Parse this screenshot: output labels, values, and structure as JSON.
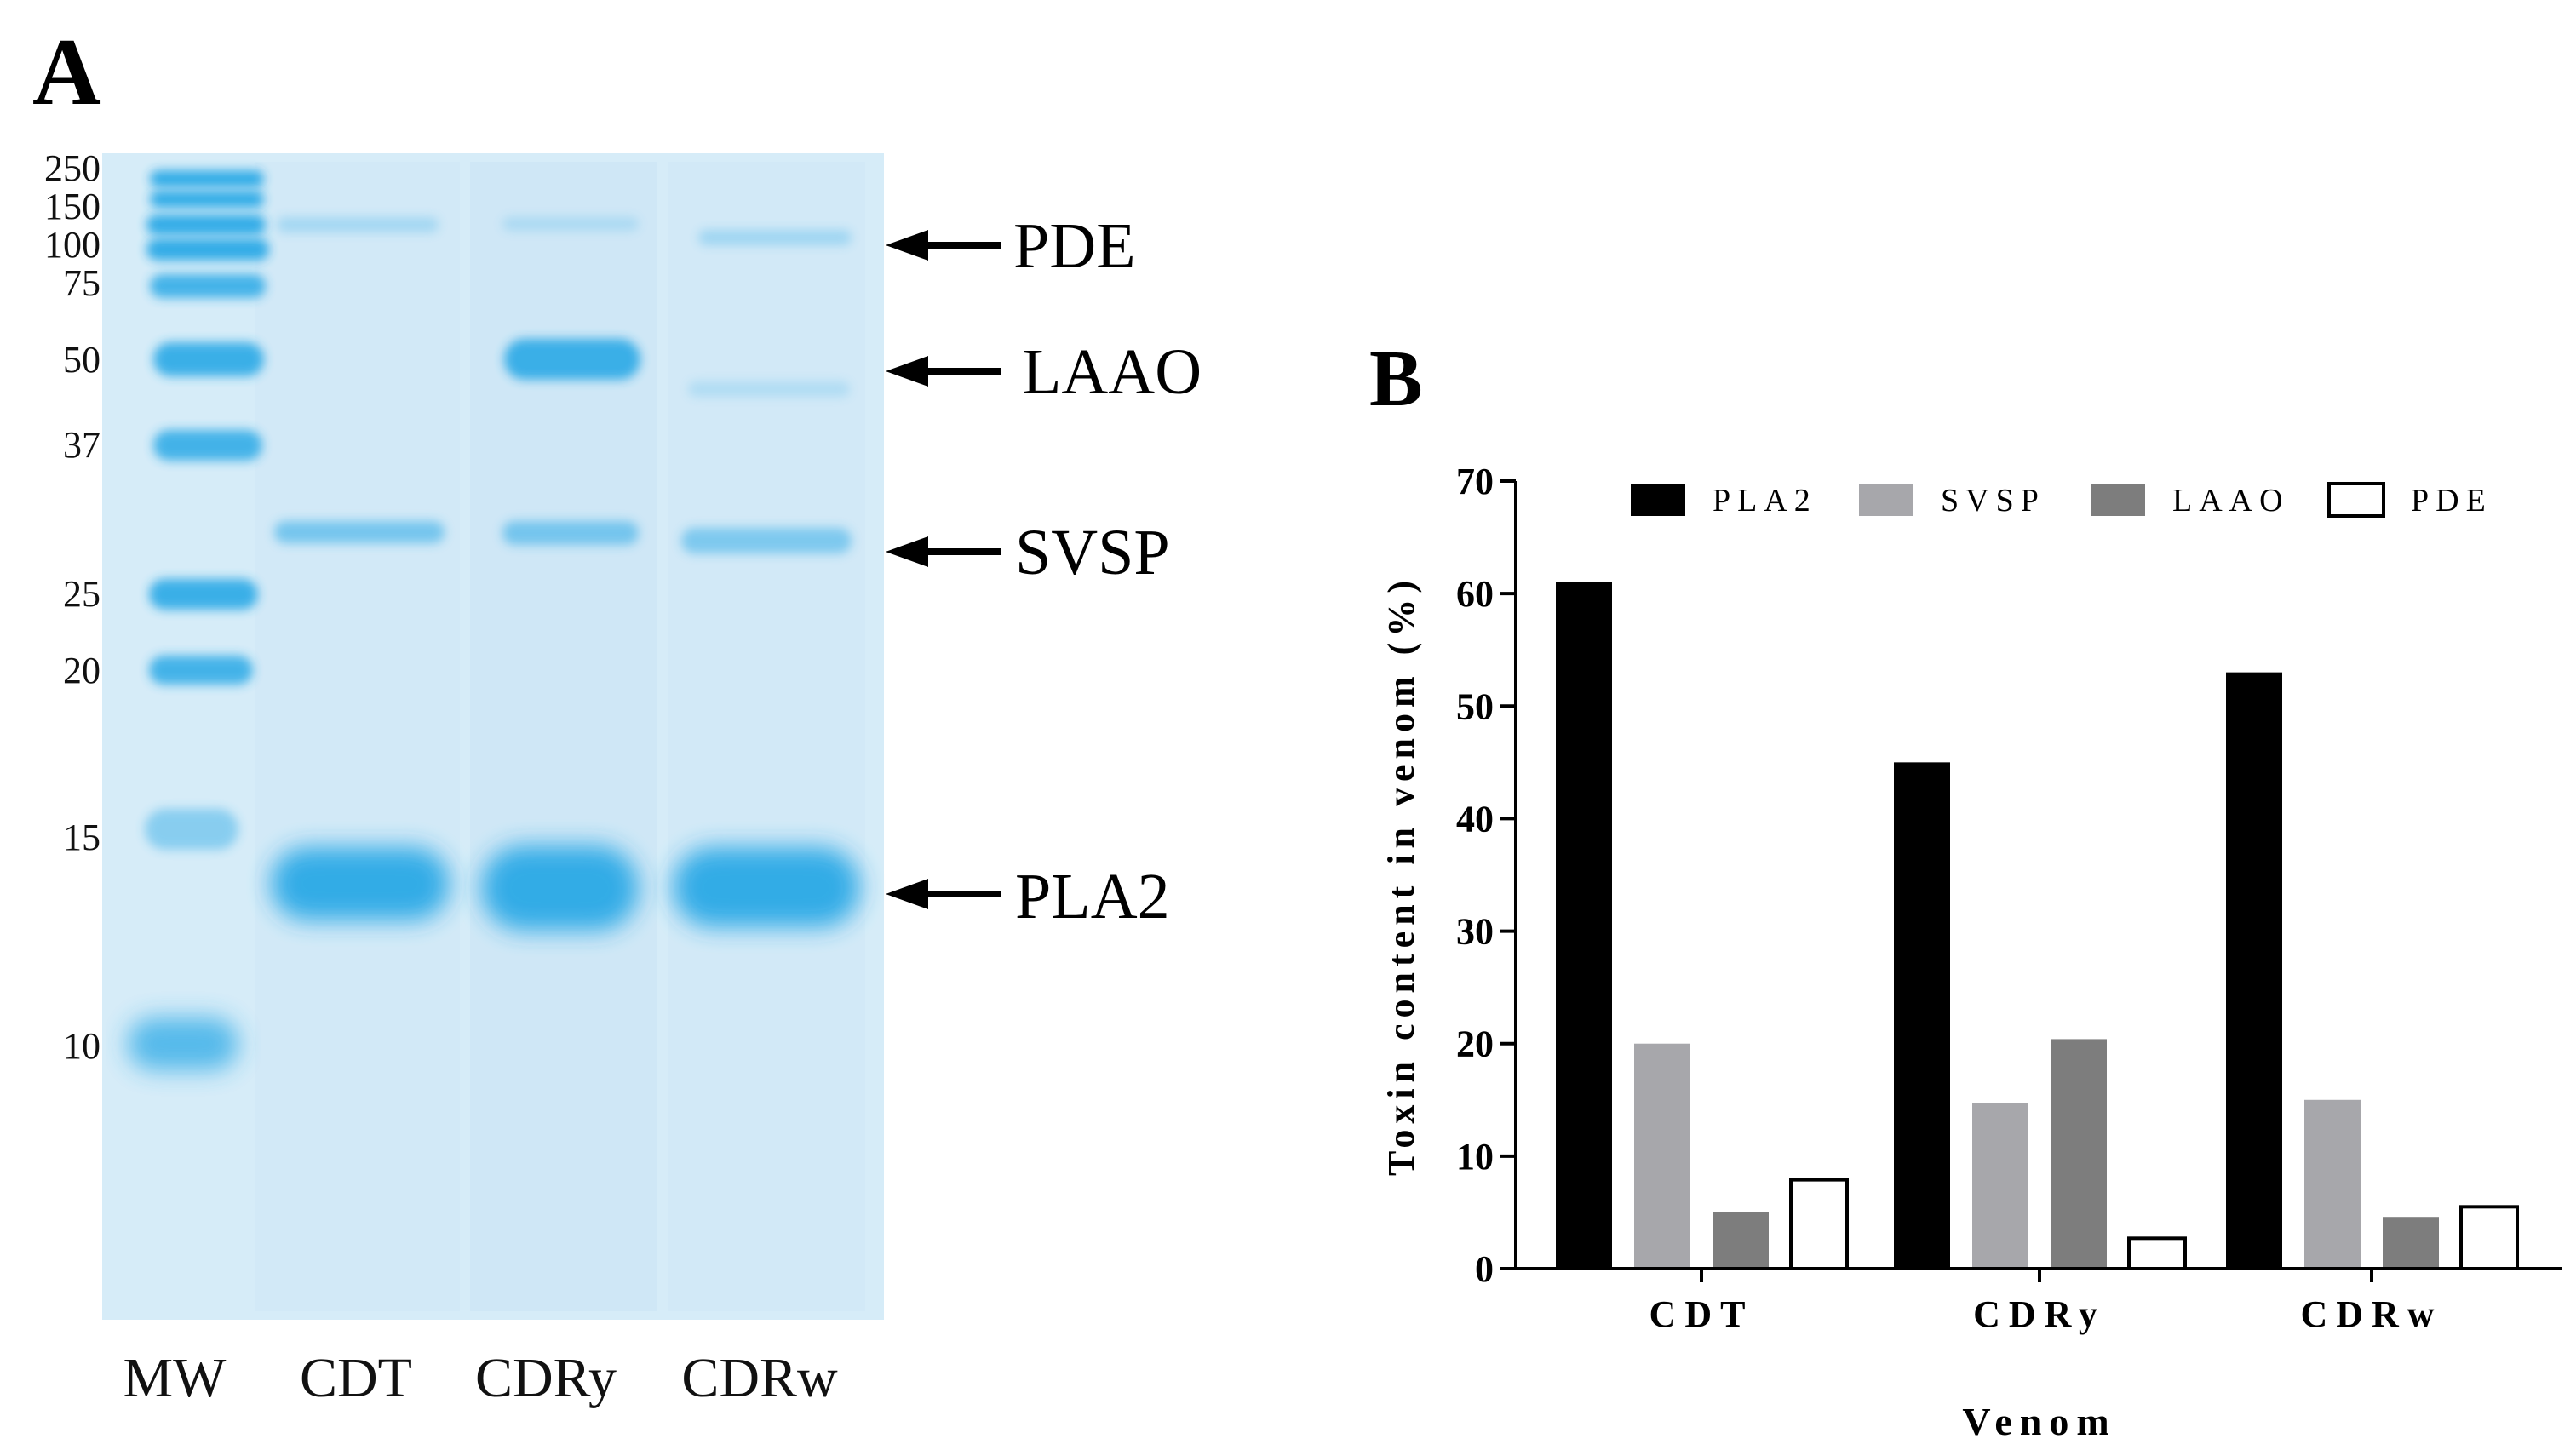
{
  "figure": {
    "panel_a_letter": "A",
    "panel_b_letter": "B"
  },
  "gel": {
    "mw_markers": [
      "250",
      "150",
      "100",
      "75",
      "50",
      "37",
      "25",
      "20",
      "15",
      "10"
    ],
    "lanes": [
      "MW",
      "CDT",
      "CDRy",
      "CDRw"
    ],
    "annotations": [
      "PDE",
      "LAAO",
      "SVSP",
      "PLA2"
    ],
    "stain_color": "#2aa9e6",
    "background_color": "#d6ecf8"
  },
  "chart_data": {
    "type": "bar",
    "categories": [
      "CDT",
      "CDRy",
      "CDRw"
    ],
    "series": [
      {
        "name": "PLA2",
        "values": [
          61,
          45,
          53
        ],
        "color": "#000000"
      },
      {
        "name": "SVSP",
        "values": [
          20,
          14.7,
          15
        ],
        "color": "#a7a7ab"
      },
      {
        "name": "LAAO",
        "values": [
          5,
          20.4,
          4.6
        ],
        "color": "#7d7d7d"
      },
      {
        "name": "PDE",
        "values": [
          7.9,
          2.7,
          5.5
        ],
        "color": "#ffffff"
      }
    ],
    "xlabel": "Venom",
    "ylabel": "Toxin content in venom (%)",
    "ylim": [
      0,
      70
    ],
    "yticks": [
      0,
      10,
      20,
      30,
      40,
      50,
      60,
      70
    ],
    "legend_position": "top",
    "grid": false
  }
}
